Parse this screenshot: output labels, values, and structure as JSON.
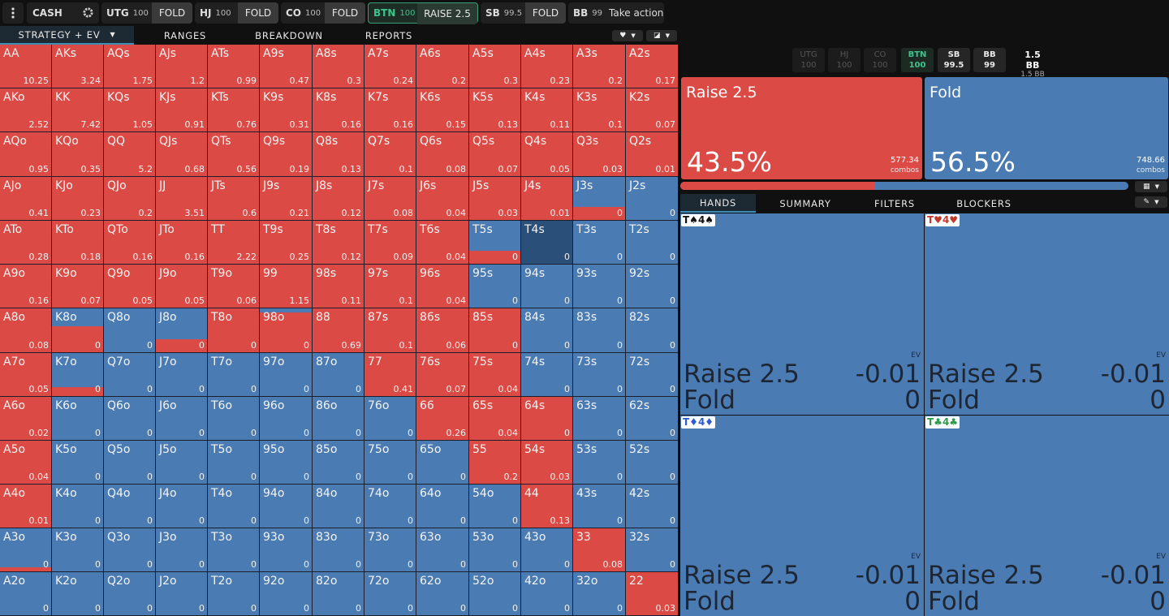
{
  "topbar": {
    "menu_icon": "more-vertical-icon",
    "game": "CASH",
    "settings_icon": "gear-icon",
    "seats": [
      {
        "pos": "UTG",
        "stack": "100",
        "action": "FOLD"
      },
      {
        "pos": "HJ",
        "stack": "100",
        "action": "FOLD"
      },
      {
        "pos": "CO",
        "stack": "100",
        "action": "FOLD"
      },
      {
        "pos": "BTN",
        "stack": "100",
        "action": "RAISE 2.5"
      },
      {
        "pos": "SB",
        "stack": "99.5",
        "action": "FOLD"
      },
      {
        "pos": "BB",
        "stack": "99",
        "action": "Take action"
      }
    ]
  },
  "tabs": {
    "strategy": "STRATEGY + EV",
    "ranges": "RANGES",
    "breakdown": "BREAKDOWN",
    "reports": "REPORTS",
    "heart_icon": "heart-icon",
    "display_icon": "contrast-icon"
  },
  "grid": {
    "hands": [
      [
        "AA",
        "AKs",
        "AQs",
        "AJs",
        "ATs",
        "A9s",
        "A8s",
        "A7s",
        "A6s",
        "A5s",
        "A4s",
        "A3s",
        "A2s"
      ],
      [
        "AKo",
        "KK",
        "KQs",
        "KJs",
        "KTs",
        "K9s",
        "K8s",
        "K7s",
        "K6s",
        "K5s",
        "K4s",
        "K3s",
        "K2s"
      ],
      [
        "AQo",
        "KQo",
        "QQ",
        "QJs",
        "QTs",
        "Q9s",
        "Q8s",
        "Q7s",
        "Q6s",
        "Q5s",
        "Q4s",
        "Q3s",
        "Q2s"
      ],
      [
        "AJo",
        "KJo",
        "QJo",
        "JJ",
        "JTs",
        "J9s",
        "J8s",
        "J7s",
        "J6s",
        "J5s",
        "J4s",
        "J3s",
        "J2s"
      ],
      [
        "ATo",
        "KTo",
        "QTo",
        "JTo",
        "TT",
        "T9s",
        "T8s",
        "T7s",
        "T6s",
        "T5s",
        "T4s",
        "T3s",
        "T2s"
      ],
      [
        "A9o",
        "K9o",
        "Q9o",
        "J9o",
        "T9o",
        "99",
        "98s",
        "97s",
        "96s",
        "95s",
        "94s",
        "93s",
        "92s"
      ],
      [
        "A8o",
        "K8o",
        "Q8o",
        "J8o",
        "T8o",
        "98o",
        "88",
        "87s",
        "86s",
        "85s",
        "84s",
        "83s",
        "82s"
      ],
      [
        "A7o",
        "K7o",
        "Q7o",
        "J7o",
        "T7o",
        "97o",
        "87o",
        "77",
        "76s",
        "75s",
        "74s",
        "73s",
        "72s"
      ],
      [
        "A6o",
        "K6o",
        "Q6o",
        "J6o",
        "T6o",
        "96o",
        "86o",
        "76o",
        "66",
        "65s",
        "64s",
        "63s",
        "62s"
      ],
      [
        "A5o",
        "K5o",
        "Q5o",
        "J5o",
        "T5o",
        "95o",
        "85o",
        "75o",
        "65o",
        "55",
        "54s",
        "53s",
        "52s"
      ],
      [
        "A4o",
        "K4o",
        "Q4o",
        "J4o",
        "T4o",
        "94o",
        "84o",
        "74o",
        "64o",
        "54o",
        "44",
        "43s",
        "42s"
      ],
      [
        "A3o",
        "K3o",
        "Q3o",
        "J3o",
        "T3o",
        "93o",
        "83o",
        "73o",
        "63o",
        "53o",
        "43o",
        "33",
        "32s"
      ],
      [
        "A2o",
        "K2o",
        "Q2o",
        "J2o",
        "T2o",
        "92o",
        "82o",
        "72o",
        "62o",
        "52o",
        "42o",
        "32o",
        "22"
      ]
    ],
    "ev": [
      [
        "10.25",
        "3.24",
        "1.75",
        "1.2",
        "0.99",
        "0.47",
        "0.3",
        "0.24",
        "0.2",
        "0.3",
        "0.23",
        "0.2",
        "0.17"
      ],
      [
        "2.52",
        "7.42",
        "1.05",
        "0.91",
        "0.76",
        "0.31",
        "0.16",
        "0.16",
        "0.15",
        "0.13",
        "0.11",
        "0.1",
        "0.07"
      ],
      [
        "0.95",
        "0.35",
        "5.2",
        "0.68",
        "0.56",
        "0.19",
        "0.13",
        "0.1",
        "0.08",
        "0.07",
        "0.05",
        "0.03",
        "0.01"
      ],
      [
        "0.41",
        "0.23",
        "0.2",
        "3.51",
        "0.6",
        "0.21",
        "0.12",
        "0.08",
        "0.04",
        "0.03",
        "0.01",
        "0",
        "0"
      ],
      [
        "0.28",
        "0.18",
        "0.16",
        "0.16",
        "2.22",
        "0.25",
        "0.12",
        "0.09",
        "0.04",
        "0",
        "0",
        "0",
        "0"
      ],
      [
        "0.16",
        "0.07",
        "0.05",
        "0.05",
        "0.06",
        "1.15",
        "0.11",
        "0.1",
        "0.04",
        "0",
        "0",
        "0",
        "0"
      ],
      [
        "0.08",
        "0",
        "0",
        "0",
        "0",
        "0",
        "0.69",
        "0.1",
        "0.06",
        "0",
        "0",
        "0",
        "0"
      ],
      [
        "0.05",
        "0",
        "0",
        "0",
        "0",
        "0",
        "0",
        "0.41",
        "0.07",
        "0.04",
        "0",
        "0",
        "0"
      ],
      [
        "0.02",
        "0",
        "0",
        "0",
        "0",
        "0",
        "0",
        "0",
        "0.26",
        "0.04",
        "0",
        "0",
        "0"
      ],
      [
        "0.04",
        "0",
        "0",
        "0",
        "0",
        "0",
        "0",
        "0",
        "0",
        "0.2",
        "0.03",
        "0",
        "0"
      ],
      [
        "0.01",
        "0",
        "0",
        "0",
        "0",
        "0",
        "0",
        "0",
        "0",
        "0",
        "0.13",
        "0",
        "0"
      ],
      [
        "0",
        "0",
        "0",
        "0",
        "0",
        "0",
        "0",
        "0",
        "0",
        "0",
        "0",
        "0.08",
        "0"
      ],
      [
        "0",
        "0",
        "0",
        "0",
        "0",
        "0",
        "0",
        "0",
        "0",
        "0",
        "0",
        "0",
        "0.03"
      ]
    ],
    "raise_freq": [
      [
        1,
        1,
        1,
        1,
        1,
        1,
        1,
        1,
        1,
        1,
        1,
        1,
        1
      ],
      [
        1,
        1,
        1,
        1,
        1,
        1,
        1,
        1,
        1,
        1,
        1,
        1,
        1
      ],
      [
        1,
        1,
        1,
        1,
        1,
        1,
        1,
        1,
        1,
        1,
        1,
        1,
        1
      ],
      [
        1,
        1,
        1,
        1,
        1,
        1,
        1,
        1,
        1,
        1,
        1,
        0.3,
        0
      ],
      [
        1,
        1,
        1,
        1,
        1,
        1,
        1,
        1,
        1,
        0.3,
        0,
        0,
        0
      ],
      [
        1,
        1,
        1,
        1,
        1,
        1,
        1,
        1,
        1,
        0,
        0,
        0,
        0
      ],
      [
        1,
        0.6,
        0,
        0.3,
        1,
        0.9,
        1,
        1,
        1,
        1,
        0,
        0,
        0
      ],
      [
        1,
        0.2,
        0,
        0,
        0,
        0,
        0,
        1,
        1,
        1,
        0,
        0,
        0
      ],
      [
        1,
        0,
        0,
        0,
        0,
        0,
        0,
        0,
        1,
        1,
        1,
        0,
        0
      ],
      [
        1,
        0,
        0,
        0,
        0,
        0,
        0,
        0,
        0,
        1,
        1,
        0,
        0
      ],
      [
        1,
        0,
        0,
        0,
        0,
        0,
        0,
        0,
        0,
        0,
        1,
        0,
        0
      ],
      [
        0.1,
        0,
        0,
        0,
        0,
        0,
        0,
        0,
        0,
        0,
        0,
        1,
        0
      ],
      [
        0,
        0,
        0,
        0,
        0,
        0,
        0,
        0,
        0,
        0,
        0,
        0,
        1
      ]
    ],
    "highlighted": "T4s"
  },
  "right": {
    "positions": [
      {
        "pos": "UTG",
        "stack": "100"
      },
      {
        "pos": "HJ",
        "stack": "100"
      },
      {
        "pos": "CO",
        "stack": "100"
      },
      {
        "pos": "BTN",
        "stack": "100"
      },
      {
        "pos": "SB",
        "stack": "99.5"
      },
      {
        "pos": "BB",
        "stack": "99"
      }
    ],
    "pot": "1.5 BB",
    "pot_sub": "1.5 BB",
    "actions": [
      {
        "name": "Raise 2.5",
        "pct": "43.5%",
        "combos": "577.34",
        "unit": "combos",
        "color": "#dc4a45"
      },
      {
        "name": "Fold",
        "pct": "56.5%",
        "combos": "748.66",
        "unit": "combos",
        "color": "#4a7bb3"
      }
    ],
    "raise_fraction": 0.435,
    "tabs": [
      "HANDS",
      "SUMMARY",
      "FILTERS",
      "BLOCKERS"
    ],
    "grid_icon": "grid-icon",
    "pin_icon": "pin-icon",
    "combos": [
      {
        "label": "T♠4♠",
        "suit_color": "#111111",
        "ev_label": "EV",
        "rows": [
          {
            "action": "Raise 2.5",
            "ev": "-0.01"
          },
          {
            "action": "Fold",
            "ev": "0"
          }
        ]
      },
      {
        "label": "T♥4♥",
        "suit_color": "#c0392b",
        "ev_label": "EV",
        "rows": [
          {
            "action": "Raise 2.5",
            "ev": "-0.01"
          },
          {
            "action": "Fold",
            "ev": "0"
          }
        ]
      },
      {
        "label": "T♦4♦",
        "suit_color": "#2f5bd0",
        "ev_label": "EV",
        "rows": [
          {
            "action": "Raise 2.5",
            "ev": "-0.01"
          },
          {
            "action": "Fold",
            "ev": "0"
          }
        ]
      },
      {
        "label": "T♣4♣",
        "suit_color": "#2e9b4a",
        "ev_label": "EV",
        "rows": [
          {
            "action": "Raise 2.5",
            "ev": "-0.01"
          },
          {
            "action": "Fold",
            "ev": "0"
          }
        ]
      }
    ]
  }
}
